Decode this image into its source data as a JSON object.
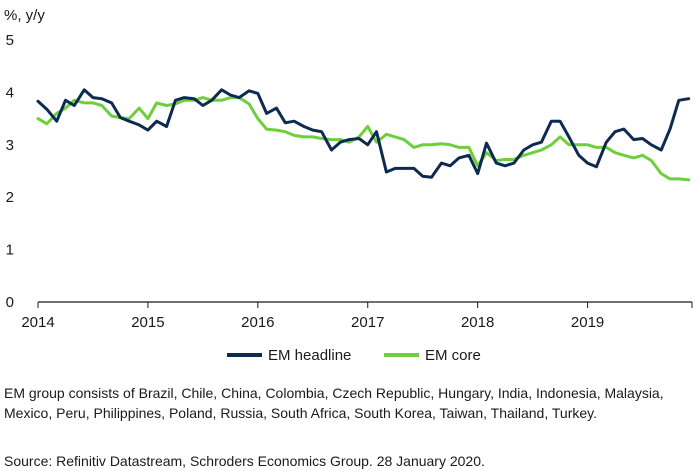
{
  "chart_data": {
    "type": "line",
    "ylabel": "%, y/y",
    "ylim": [
      0,
      5
    ],
    "yticks": [
      0,
      1,
      2,
      3,
      4,
      5
    ],
    "xlim": [
      2014.0,
      2019.95
    ],
    "xticks": [
      2014,
      2015,
      2016,
      2017,
      2018,
      2019
    ],
    "xtick_labels": [
      "2014",
      "2015",
      "2016",
      "2017",
      "2018",
      "2019"
    ],
    "grid": false,
    "legend_position": "bottom",
    "series": [
      {
        "name": "EM headline",
        "color": "#0d2b52",
        "x": [
          2014.0,
          2014.08,
          2014.17,
          2014.25,
          2014.33,
          2014.42,
          2014.5,
          2014.58,
          2014.67,
          2014.75,
          2014.83,
          2014.92,
          2015.0,
          2015.08,
          2015.17,
          2015.25,
          2015.33,
          2015.42,
          2015.5,
          2015.58,
          2015.67,
          2015.75,
          2015.83,
          2015.92,
          2016.0,
          2016.08,
          2016.17,
          2016.25,
          2016.33,
          2016.42,
          2016.5,
          2016.58,
          2016.67,
          2016.75,
          2016.83,
          2016.92,
          2017.0,
          2017.08,
          2017.17,
          2017.25,
          2017.33,
          2017.42,
          2017.5,
          2017.58,
          2017.67,
          2017.75,
          2017.83,
          2017.92,
          2018.0,
          2018.08,
          2018.17,
          2018.25,
          2018.33,
          2018.42,
          2018.5,
          2018.58,
          2018.67,
          2018.75,
          2018.83,
          2018.92,
          2019.0,
          2019.08,
          2019.17,
          2019.25,
          2019.33,
          2019.42,
          2019.5,
          2019.58,
          2019.67,
          2019.75,
          2019.83,
          2019.92
        ],
        "values": [
          3.83,
          3.68,
          3.45,
          3.85,
          3.75,
          4.05,
          3.9,
          3.88,
          3.8,
          3.52,
          3.45,
          3.38,
          3.28,
          3.45,
          3.35,
          3.85,
          3.9,
          3.88,
          3.75,
          3.85,
          4.05,
          3.95,
          3.9,
          4.03,
          3.98,
          3.6,
          3.7,
          3.42,
          3.45,
          3.35,
          3.28,
          3.25,
          2.9,
          3.05,
          3.1,
          3.12,
          3.0,
          3.25,
          2.48,
          2.55,
          2.55,
          2.55,
          2.4,
          2.38,
          2.65,
          2.6,
          2.75,
          2.8,
          2.45,
          3.03,
          2.65,
          2.6,
          2.65,
          2.9,
          3.0,
          3.05,
          3.45,
          3.45,
          3.15,
          2.8,
          2.65,
          2.58,
          3.05,
          3.25,
          3.3,
          3.1,
          3.12,
          3.0,
          2.9,
          3.3,
          3.85,
          3.88
        ]
      },
      {
        "name": "EM core",
        "color": "#6ecf3c",
        "x": [
          2014.0,
          2014.08,
          2014.17,
          2014.25,
          2014.33,
          2014.42,
          2014.5,
          2014.58,
          2014.67,
          2014.75,
          2014.83,
          2014.92,
          2015.0,
          2015.08,
          2015.17,
          2015.25,
          2015.33,
          2015.42,
          2015.5,
          2015.58,
          2015.67,
          2015.75,
          2015.83,
          2015.92,
          2016.0,
          2016.08,
          2016.17,
          2016.25,
          2016.33,
          2016.42,
          2016.5,
          2016.58,
          2016.67,
          2016.75,
          2016.83,
          2016.92,
          2017.0,
          2017.08,
          2017.17,
          2017.25,
          2017.33,
          2017.42,
          2017.5,
          2017.58,
          2017.67,
          2017.75,
          2017.83,
          2017.92,
          2018.0,
          2018.08,
          2018.17,
          2018.25,
          2018.33,
          2018.42,
          2018.5,
          2018.58,
          2018.67,
          2018.75,
          2018.83,
          2018.92,
          2019.0,
          2019.08,
          2019.17,
          2019.25,
          2019.33,
          2019.42,
          2019.5,
          2019.58,
          2019.67,
          2019.75,
          2019.83,
          2019.92
        ],
        "values": [
          3.5,
          3.4,
          3.6,
          3.7,
          3.85,
          3.8,
          3.8,
          3.75,
          3.55,
          3.52,
          3.5,
          3.7,
          3.5,
          3.8,
          3.75,
          3.78,
          3.85,
          3.85,
          3.9,
          3.85,
          3.85,
          3.9,
          3.9,
          3.78,
          3.5,
          3.3,
          3.28,
          3.25,
          3.18,
          3.15,
          3.15,
          3.12,
          3.1,
          3.1,
          3.05,
          3.15,
          3.35,
          3.05,
          3.2,
          3.15,
          3.1,
          2.95,
          3.0,
          3.0,
          3.02,
          3.0,
          2.95,
          2.95,
          2.6,
          2.85,
          2.7,
          2.72,
          2.72,
          2.8,
          2.85,
          2.9,
          3.0,
          3.15,
          3.0,
          3.0,
          3.0,
          2.95,
          2.95,
          2.85,
          2.8,
          2.75,
          2.8,
          2.7,
          2.45,
          2.35,
          2.35,
          2.33
        ]
      }
    ]
  },
  "notes": {
    "group": "EM group consists of Brazil, Chile, China, Colombia, Czech Republic, Hungary, India, Indonesia, Malaysia, Mexico, Peru, Philippines, Poland, Russia, South Africa, South Korea, Taiwan, Thailand, Turkey.",
    "source": "Source: Refinitiv Datastream, Schroders Economics Group. 28 January 2020."
  }
}
